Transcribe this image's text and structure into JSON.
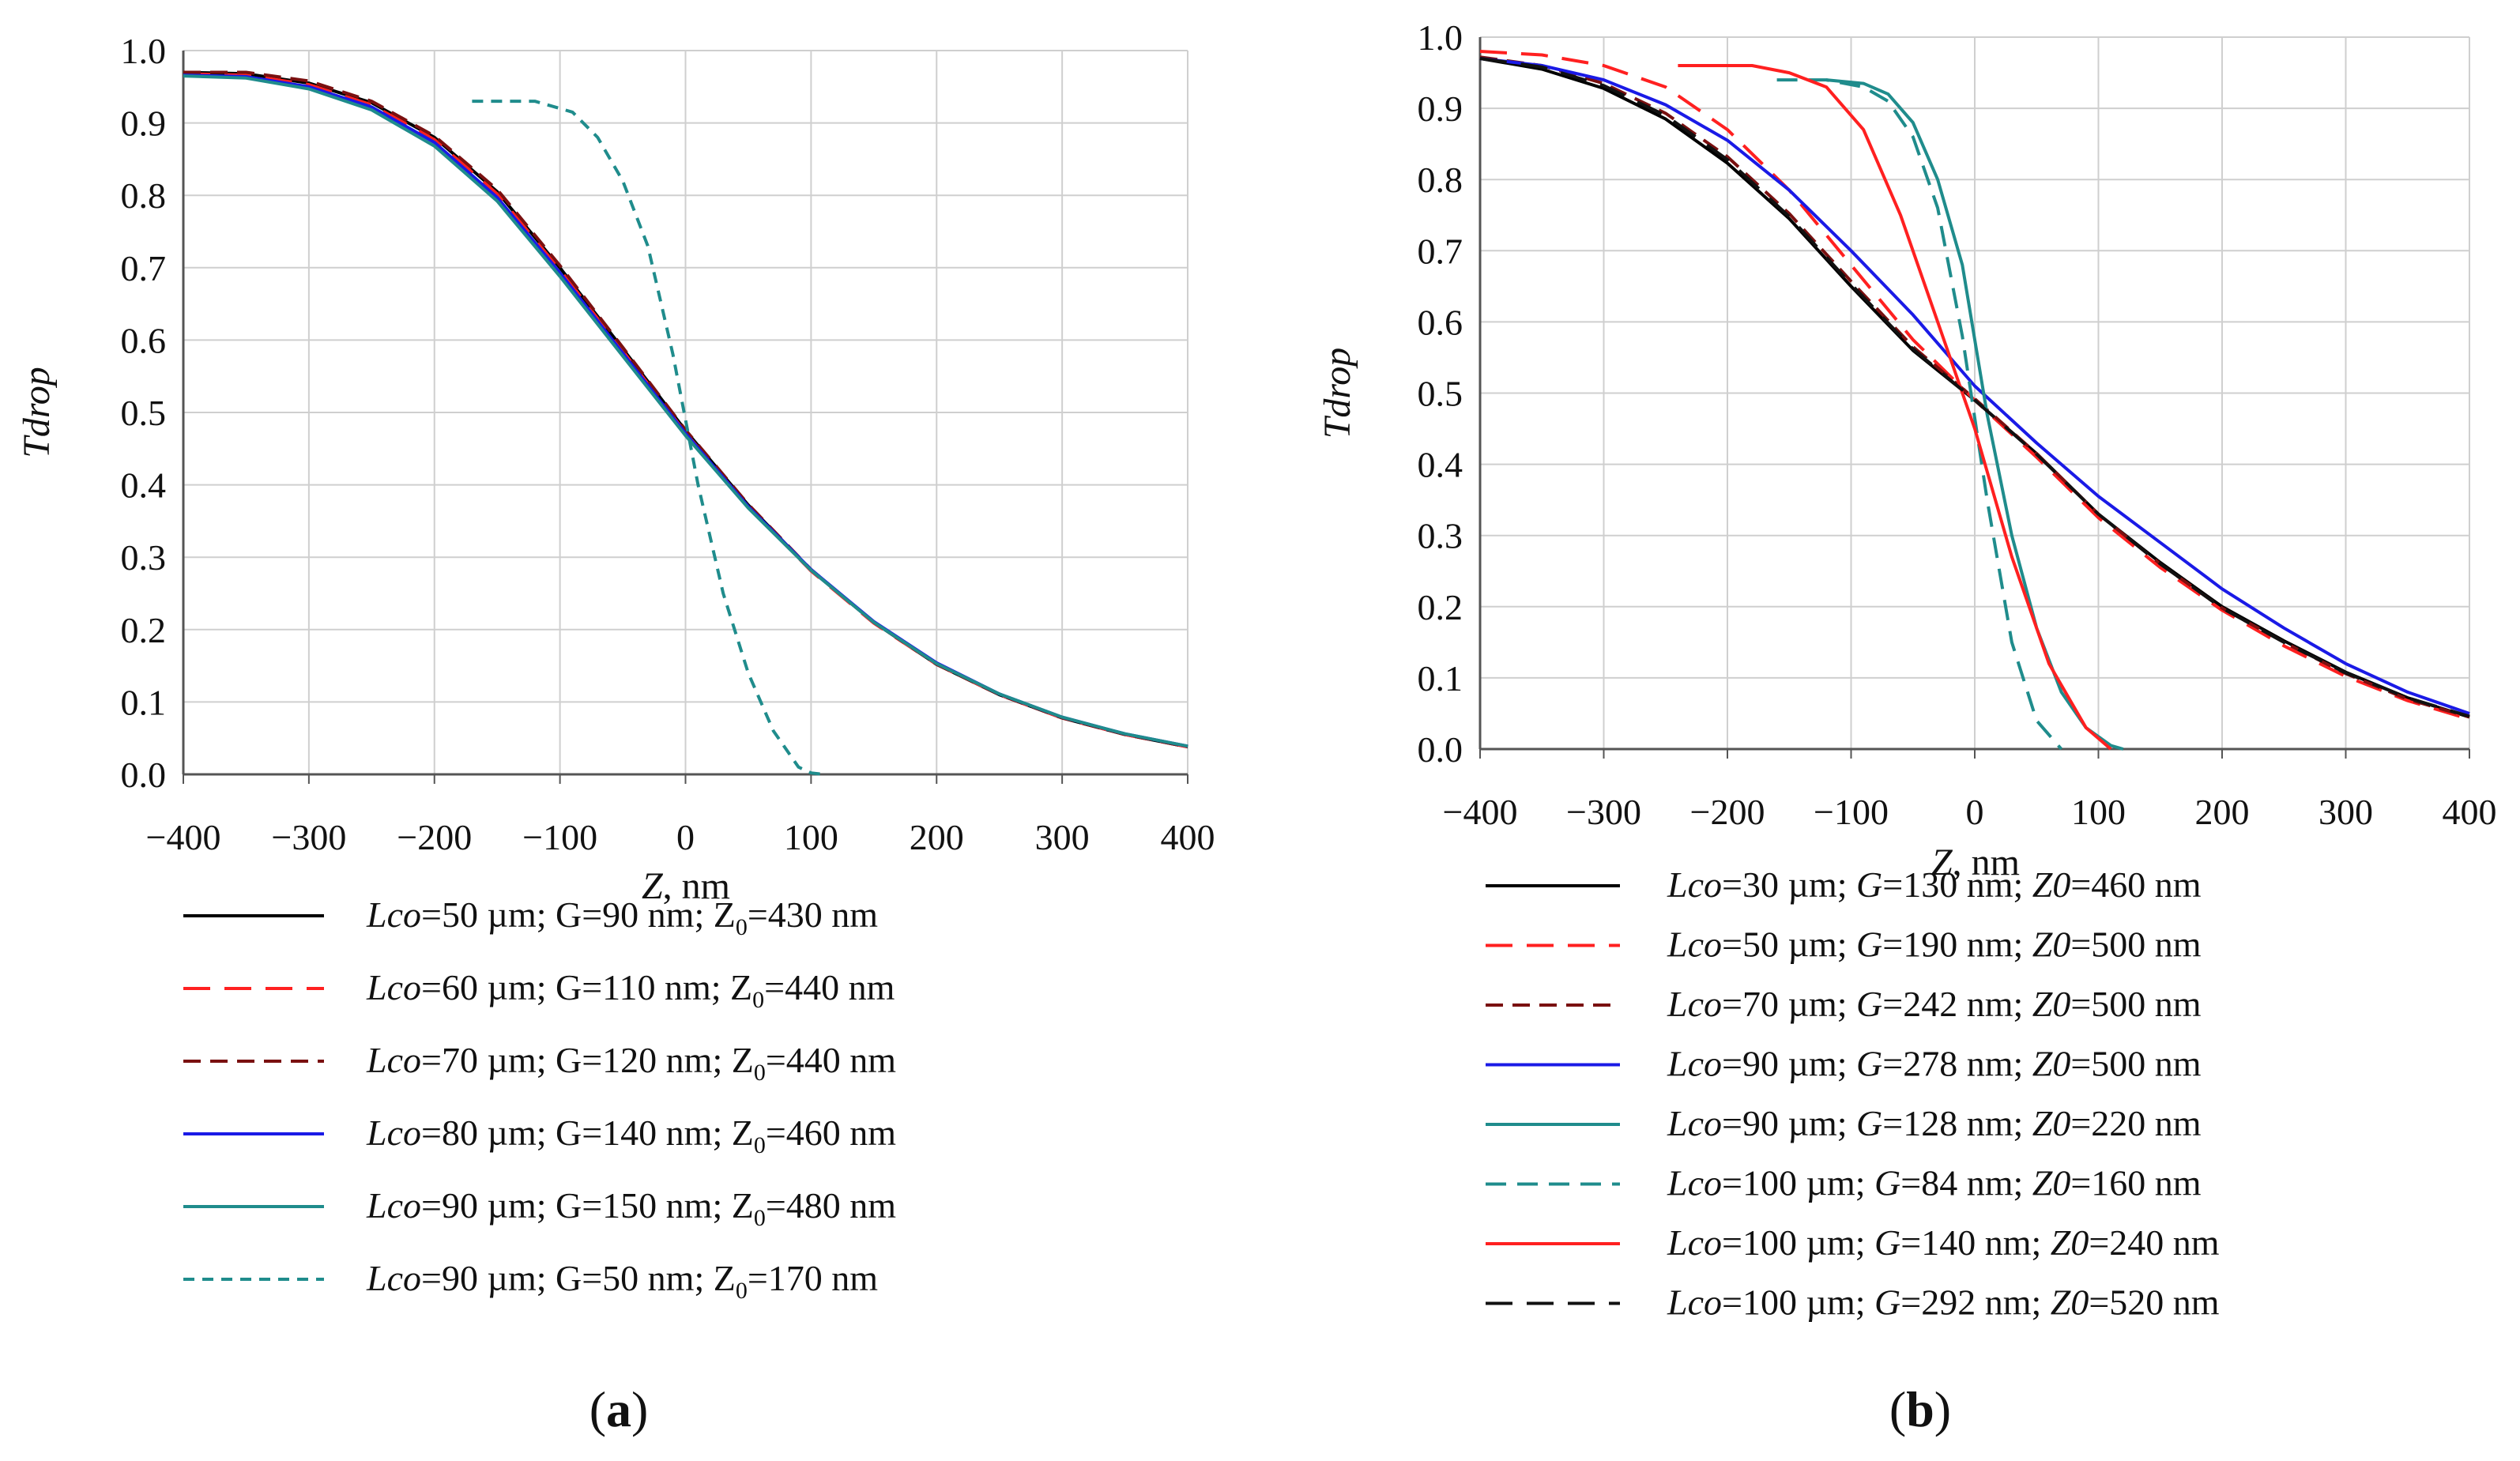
{
  "chart_data": [
    {
      "type": "line",
      "panel_label": {
        "open": "(",
        "letter": "a",
        "close": ")"
      },
      "xlabel": {
        "var": "Z",
        "unit": ", nm"
      },
      "ylabel": "Tdrop",
      "xlim": [
        -400,
        400
      ],
      "ylim": [
        0,
        1
      ],
      "xticks": [
        -400,
        -300,
        -200,
        -100,
        0,
        100,
        200,
        300,
        400
      ],
      "xtick_labels": [
        "−400",
        "−300",
        "−200",
        "−100",
        "0",
        "100",
        "200",
        "300",
        "400"
      ],
      "yticks": [
        0,
        0.1,
        0.2,
        0.3,
        0.4,
        0.5,
        0.6,
        0.7,
        0.8,
        0.9,
        1.0
      ],
      "ytick_labels": [
        "0.0",
        "0.1",
        "0.2",
        "0.3",
        "0.4",
        "0.5",
        "0.6",
        "0.7",
        "0.8",
        "0.9",
        "1.0"
      ],
      "grid": true,
      "legend_position": "below",
      "series": [
        {
          "name": "Lco=50 µm; G=90 nm; Z0=430 nm",
          "color": "#000000",
          "dash": "solid",
          "legend": {
            "v1": "Lco",
            "t1": "=50 µm; G=90 nm; Z",
            "sub": "0",
            "t2": "=430 nm"
          },
          "x": [
            -400,
            -350,
            -300,
            -250,
            -200,
            -150,
            -100,
            -50,
            0,
            50,
            100,
            150,
            200,
            250,
            300,
            350,
            400
          ],
          "y": [
            0.97,
            0.968,
            0.955,
            0.928,
            0.88,
            0.805,
            0.7,
            0.588,
            0.475,
            0.372,
            0.282,
            0.21,
            0.152,
            0.11,
            0.078,
            0.055,
            0.038
          ]
        },
        {
          "name": "Lco=60 µm; G=110 nm; Z0=440 nm",
          "color": "#ff2020",
          "dash": "long",
          "legend": {
            "v1": "Lco",
            "t1": "=60 µm; G=110 nm; Z",
            "sub": "0",
            "t2": "=440 nm"
          },
          "x": [
            -400,
            -350,
            -300,
            -250,
            -200,
            -150,
            -100,
            -50,
            0,
            50,
            100,
            150,
            200,
            250,
            300,
            350,
            400
          ],
          "y": [
            0.968,
            0.966,
            0.953,
            0.925,
            0.877,
            0.802,
            0.697,
            0.585,
            0.472,
            0.37,
            0.281,
            0.209,
            0.152,
            0.11,
            0.078,
            0.055,
            0.038
          ]
        },
        {
          "name": "Lco=70 µm; G=120 nm; Z0=440 nm",
          "color": "#7a1010",
          "dash": "medium",
          "legend": {
            "v1": "Lco",
            "t1": "=70 µm; G=120 nm; Z",
            "sub": "0",
            "t2": "=440 nm"
          },
          "x": [
            -400,
            -350,
            -300,
            -250,
            -200,
            -150,
            -100,
            -50,
            0,
            50,
            100,
            150,
            200,
            250,
            300,
            350,
            400
          ],
          "y": [
            0.97,
            0.97,
            0.958,
            0.93,
            0.882,
            0.808,
            0.703,
            0.59,
            0.476,
            0.373,
            0.283,
            0.21,
            0.152,
            0.11,
            0.078,
            0.055,
            0.038
          ]
        },
        {
          "name": "Lco=80 µm; G=140 nm; Z0=460 nm",
          "color": "#1a1ae6",
          "dash": "solid",
          "legend": {
            "v1": "Lco",
            "t1": "=80 µm; G=140 nm; Z",
            "sub": "0",
            "t2": "=460 nm"
          },
          "x": [
            -400,
            -350,
            -300,
            -250,
            -200,
            -150,
            -100,
            -50,
            0,
            50,
            100,
            150,
            200,
            250,
            300,
            350,
            400
          ],
          "y": [
            0.966,
            0.964,
            0.95,
            0.922,
            0.873,
            0.797,
            0.693,
            0.582,
            0.471,
            0.37,
            0.283,
            0.211,
            0.154,
            0.111,
            0.079,
            0.056,
            0.039
          ]
        },
        {
          "name": "Lco=90 µm; G=150 nm; Z0=480 nm",
          "color": "#1f8c8c",
          "dash": "solid",
          "legend": {
            "v1": "Lco",
            "t1": "=90 µm; G=150 nm; Z",
            "sub": "0",
            "t2": "=480 nm"
          },
          "x": [
            -400,
            -350,
            -300,
            -250,
            -200,
            -150,
            -100,
            -50,
            0,
            50,
            100,
            150,
            200,
            250,
            300,
            350,
            400
          ],
          "y": [
            0.965,
            0.962,
            0.947,
            0.918,
            0.868,
            0.792,
            0.688,
            0.578,
            0.468,
            0.368,
            0.282,
            0.21,
            0.153,
            0.111,
            0.079,
            0.056,
            0.039
          ]
        },
        {
          "name": "Lco=90 µm; G=50 nm; Z0=170 nm",
          "color": "#1f8c8c",
          "dash": "short",
          "legend": {
            "v1": "Lco",
            "t1": "=90 µm; G=50 nm; Z",
            "sub": "0",
            "t2": "=170 nm"
          },
          "x": [
            -170,
            -120,
            -90,
            -70,
            -50,
            -30,
            -10,
            10,
            30,
            50,
            70,
            90,
            100,
            110
          ],
          "y": [
            0.93,
            0.93,
            0.915,
            0.88,
            0.82,
            0.73,
            0.58,
            0.4,
            0.25,
            0.14,
            0.06,
            0.01,
            0.002,
            0.0
          ]
        }
      ]
    },
    {
      "type": "line",
      "panel_label": {
        "open": "(",
        "letter": "b",
        "close": ")"
      },
      "xlabel": {
        "var": "Z",
        "unit": ", nm"
      },
      "ylabel": "Tdrop",
      "xlim": [
        -400,
        400
      ],
      "ylim": [
        0,
        1
      ],
      "xticks": [
        -400,
        -300,
        -200,
        -100,
        0,
        100,
        200,
        300,
        400
      ],
      "xtick_labels": [
        "−400",
        "−300",
        "−200",
        "−100",
        "0",
        "100",
        "200",
        "300",
        "400"
      ],
      "yticks": [
        0,
        0.1,
        0.2,
        0.3,
        0.4,
        0.5,
        0.6,
        0.7,
        0.8,
        0.9,
        1.0
      ],
      "ytick_labels": [
        "0.0",
        "0.1",
        "0.2",
        "0.3",
        "0.4",
        "0.5",
        "0.6",
        "0.7",
        "0.8",
        "0.9",
        "1.0"
      ],
      "grid": true,
      "legend_position": "below",
      "series": [
        {
          "name": "Lco=30 µm; G=130 nm; Z0=460 nm",
          "color": "#000000",
          "dash": "solid",
          "legend": {
            "v1": "Lco",
            "t1": "=30 µm; ",
            "v2": "G",
            "t2": "=130 nm; ",
            "v3": "Z0",
            "t3": "=460 nm"
          },
          "x": [
            -400,
            -350,
            -300,
            -250,
            -200,
            -150,
            -100,
            -50,
            0,
            50,
            100,
            150,
            200,
            250,
            300,
            350,
            400
          ],
          "y": [
            0.97,
            0.955,
            0.928,
            0.885,
            0.823,
            0.745,
            0.65,
            0.56,
            0.49,
            0.415,
            0.33,
            0.262,
            0.2,
            0.152,
            0.108,
            0.072,
            0.045
          ]
        },
        {
          "name": "Lco=50 µm; G=190 nm; Z0=500 nm",
          "color": "#ff2020",
          "dash": "long",
          "legend": {
            "v1": "Lco",
            "t1": "=50 µm; ",
            "v2": "G",
            "t2": "=190 nm; ",
            "v3": "Z0",
            "t3": "=500 nm"
          },
          "x": [
            -400,
            -350,
            -300,
            -250,
            -200,
            -150,
            -100,
            -50,
            0,
            50,
            100,
            150,
            200,
            250,
            300,
            350,
            400
          ],
          "y": [
            0.98,
            0.975,
            0.96,
            0.93,
            0.87,
            0.785,
            0.68,
            0.575,
            0.49,
            0.41,
            0.325,
            0.255,
            0.195,
            0.145,
            0.102,
            0.068,
            0.042
          ]
        },
        {
          "name": "Lco=70 µm; G=242 nm; Z0=500 nm",
          "color": "#7a1010",
          "dash": "medium",
          "legend": {
            "v1": "Lco",
            "t1": "=70 µm; ",
            "v2": "G",
            "t2": "=242 nm; ",
            "v3": "Z0",
            "t3": "=500 nm"
          },
          "x": [
            -400,
            -350,
            -300,
            -250,
            -200,
            -150,
            -100,
            -50,
            0,
            50,
            100,
            150,
            200,
            250,
            300,
            350,
            400
          ],
          "y": [
            0.972,
            0.96,
            0.935,
            0.893,
            0.832,
            0.752,
            0.657,
            0.565,
            0.492,
            0.415,
            0.33,
            0.26,
            0.198,
            0.15,
            0.106,
            0.07,
            0.045
          ]
        },
        {
          "name": "Lco=90 µm; G=278 nm; Z0=500 nm",
          "color": "#1a1ae6",
          "dash": "solid",
          "legend": {
            "v1": "Lco",
            "t1": "=90 µm; ",
            "v2": "G",
            "t2": "=278 nm; ",
            "v3": "Z0",
            "t3": "=500 nm"
          },
          "x": [
            -400,
            -350,
            -300,
            -250,
            -200,
            -150,
            -100,
            -50,
            0,
            50,
            100,
            150,
            200,
            250,
            300,
            350,
            400
          ],
          "y": [
            0.97,
            0.96,
            0.94,
            0.905,
            0.855,
            0.785,
            0.7,
            0.61,
            0.51,
            0.43,
            0.355,
            0.29,
            0.225,
            0.17,
            0.12,
            0.08,
            0.05
          ]
        },
        {
          "name": "Lco=90 µm; G=128 nm; Z0=220 nm",
          "color": "#1f8c8c",
          "dash": "solid",
          "legend": {
            "v1": "Lco",
            "t1": "=90 µm; ",
            "v2": "G",
            "t2": "=128 nm; ",
            "v3": "Z0",
            "t3": "=220 nm"
          },
          "x": [
            -120,
            -90,
            -70,
            -50,
            -30,
            -10,
            10,
            30,
            50,
            70,
            90,
            110,
            120
          ],
          "y": [
            0.94,
            0.935,
            0.92,
            0.88,
            0.8,
            0.68,
            0.47,
            0.3,
            0.17,
            0.08,
            0.03,
            0.005,
            0.0
          ]
        },
        {
          "name": "Lco=100 µm; G=84 nm; Z0=160 nm",
          "color": "#1f8c8c",
          "dash": "dash",
          "legend": {
            "v1": "Lco",
            "t1": "=100 µm; ",
            "v2": "G",
            "t2": "=84 nm; ",
            "v3": "Z0",
            "t3": "=160 nm"
          },
          "x": [
            -160,
            -120,
            -90,
            -70,
            -50,
            -30,
            -10,
            10,
            30,
            50,
            70
          ],
          "y": [
            0.94,
            0.94,
            0.93,
            0.91,
            0.86,
            0.76,
            0.58,
            0.35,
            0.15,
            0.04,
            0.0
          ]
        },
        {
          "name": "Lco=100 µm; G=140 nm; Z0=240 nm",
          "color": "#ff2020",
          "dash": "solid",
          "legend": {
            "v1": "Lco",
            "t1": "=100 µm; ",
            "v2": "G",
            "t2": "=140 nm; ",
            "v3": "Z0",
            "t3": "=240 nm"
          },
          "x": [
            -240,
            -180,
            -150,
            -120,
            -90,
            -60,
            -30,
            0,
            30,
            60,
            90,
            110
          ],
          "y": [
            0.96,
            0.96,
            0.95,
            0.93,
            0.87,
            0.75,
            0.6,
            0.45,
            0.27,
            0.12,
            0.03,
            0.0
          ]
        },
        {
          "name": "Lco=100 µm; G=292 nm; Z0=520 nm",
          "color": "#111111",
          "dash": "long",
          "legend": {
            "v1": "Lco",
            "t1": "=100 µm; ",
            "v2": "G",
            "t2": "=292 nm; ",
            "v3": "Z0",
            "t3": "=520 nm"
          },
          "x": [
            -400,
            -350,
            -300,
            -250,
            -200,
            -150,
            -100,
            -50,
            0,
            50,
            100,
            150,
            200,
            250,
            300,
            350,
            400
          ],
          "y": [
            0.97,
            0.958,
            0.932,
            0.89,
            0.828,
            0.748,
            0.653,
            0.562,
            0.49,
            0.414,
            0.33,
            0.26,
            0.198,
            0.15,
            0.107,
            0.072,
            0.046
          ]
        }
      ]
    }
  ]
}
